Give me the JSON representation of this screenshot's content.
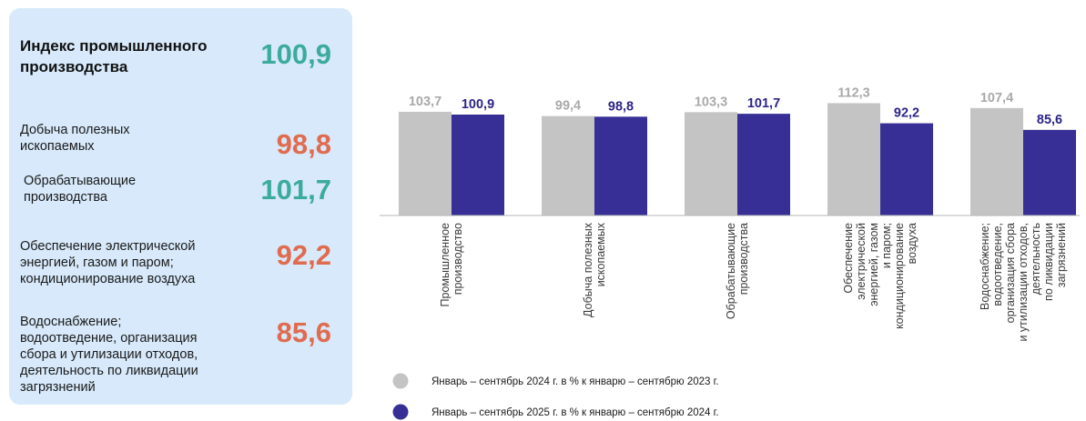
{
  "colors": {
    "positive": "#3aab9c",
    "negative": "#e06b4f",
    "series_2024": "#c4c4c4",
    "series_2025": "#372f95",
    "value_2024": "#a9a9a9",
    "value_2025": "#2b2487",
    "panel_bg": "#d7e9fa"
  },
  "indicators": [
    {
      "label": "Индекс промышленного\nпроизводства",
      "value": "100,9",
      "tone": "positive",
      "main": true
    },
    {
      "label": "Добыча полезных\nископаемых",
      "value": "98,8",
      "tone": "negative"
    },
    {
      "label": "Обрабатывающие\nпроизводства",
      "value": "101,7",
      "tone": "positive"
    },
    {
      "label": "Обеспечение электрической\nэнергией, газом и паром;\nкондиционирование воздуха",
      "value": "92,2",
      "tone": "negative"
    },
    {
      "label": "Водоснабжение;\nводоотведение, организация\nсбора и утилизации отходов,\nдеятельность по ликвидации\nзагрязнений",
      "value": "85,6",
      "tone": "negative"
    }
  ],
  "chart_data": {
    "type": "bar",
    "categories": [
      "Промышленное\nпроизводство",
      "Добыча полезных\nископаемых",
      "Обрабатывающие\nпроизводства",
      "Обеспечение\nэлектрической\nэнергией, газом\nи паром;\nкондиционирование\nвоздуха",
      "Водоснабжение;\nводоотведение,\nорганизация сбора\nи утилизации отходов,\nдеятельность\nпо ликвидации\nзагрязнений"
    ],
    "series": [
      {
        "name": "Январь – сентябрь 2024 г. в % к январю – сентябрю 2023 г.",
        "values": [
          103.7,
          99.4,
          103.3,
          112.3,
          107.4
        ],
        "labels": [
          "103,7",
          "99,4",
          "103,3",
          "112,3",
          "107,4"
        ]
      },
      {
        "name": "Январь – сентябрь 2025 г. в % к январю – сентябрю 2024 г.",
        "values": [
          100.9,
          98.8,
          101.7,
          92.2,
          85.6
        ],
        "labels": [
          "100,9",
          "98,8",
          "101,7",
          "92,2",
          "85,6"
        ]
      }
    ],
    "legend_position": "bottom",
    "grid": false
  }
}
